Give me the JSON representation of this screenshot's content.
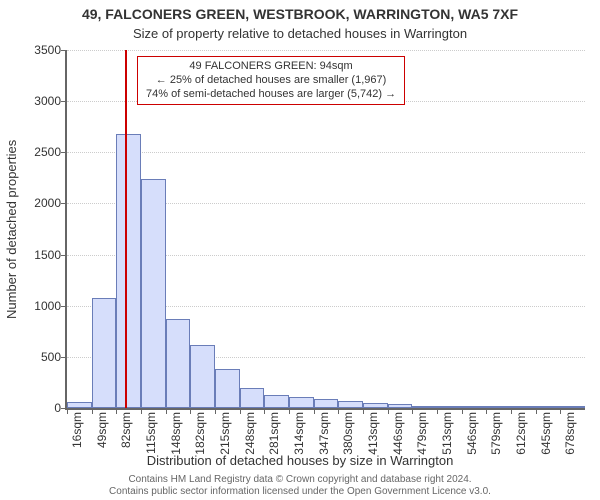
{
  "title": "49, FALCONERS GREEN, WESTBROOK, WARRINGTON, WA5 7XF",
  "subtitle": "Size of property relative to detached houses in Warrington",
  "xlabel": "Distribution of detached houses by size in Warrington",
  "ylabel": "Number of detached properties",
  "footer_line1": "Contains HM Land Registry data © Crown copyright and database right 2024.",
  "footer_line2": "Contains public sector information licensed under the Open Government Licence v3.0.",
  "annotation": {
    "line1": "49 FALCONERS GREEN: 94sqm",
    "line2": "← 25% of detached houses are smaller (1,967)",
    "line3": "74% of semi-detached houses are larger (5,742) →",
    "border_color": "#cc0000",
    "text_color": "#333333",
    "fontsize": 11
  },
  "marker": {
    "value_sqm": 94,
    "color": "#cc0000",
    "width": 2
  },
  "chart": {
    "type": "histogram",
    "bar_fill": "#d6defb",
    "bar_edge": "#6a7db8",
    "grid_color": "#cccccc",
    "axis_color": "#666666",
    "background": "#ffffff",
    "ylim": [
      0,
      3500
    ],
    "ytick_step": 500,
    "xtick_labels": [
      "16sqm",
      "49sqm",
      "82sqm",
      "115sqm",
      "148sqm",
      "182sqm",
      "215sqm",
      "248sqm",
      "281sqm",
      "314sqm",
      "347sqm",
      "380sqm",
      "413sqm",
      "446sqm",
      "479sqm",
      "513sqm",
      "546sqm",
      "579sqm",
      "612sqm",
      "645sqm",
      "678sqm"
    ],
    "x_start": 16,
    "x_bin_width": 33,
    "values": [
      60,
      1080,
      2680,
      2240,
      870,
      620,
      380,
      200,
      130,
      110,
      90,
      70,
      50,
      40,
      10,
      10,
      10,
      10,
      10,
      10,
      10
    ]
  },
  "fonts": {
    "title": 14,
    "subtitle": 13,
    "axis_label": 13,
    "tick": 12,
    "footer": 10
  },
  "colors": {
    "text": "#333333",
    "footer": "#666666"
  }
}
